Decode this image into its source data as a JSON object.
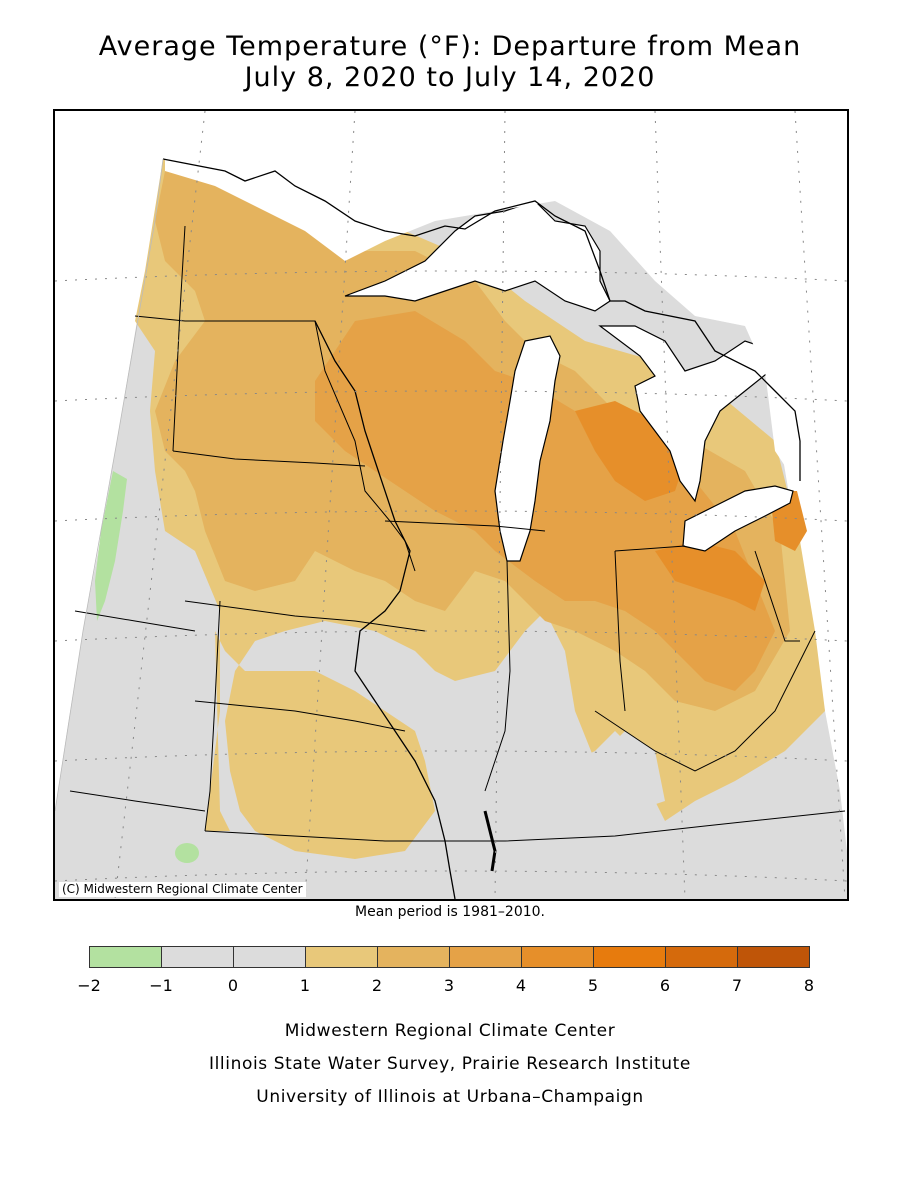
{
  "title": {
    "line1": "Average Temperature (°F): Departure from Mean",
    "line2": "July 8, 2020 to July 14, 2020"
  },
  "map": {
    "copyright": "(C) Midwestern Regional Climate Center",
    "region": "Upper Midwest / Great Lakes"
  },
  "mean_period": "Mean period is 1981–2010.",
  "legend": {
    "bins": [
      {
        "from": -2,
        "to": -1,
        "color": "#b3e1a0"
      },
      {
        "from": -1,
        "to": 0,
        "color": "#dcdcdc"
      },
      {
        "from": 0,
        "to": 1,
        "color": "#dcdcdc"
      },
      {
        "from": 1,
        "to": 2,
        "color": "#e8c87a"
      },
      {
        "from": 2,
        "to": 3,
        "color": "#e4b35e"
      },
      {
        "from": 3,
        "to": 4,
        "color": "#e5a247"
      },
      {
        "from": 4,
        "to": 5,
        "color": "#e68f2a"
      },
      {
        "from": 5,
        "to": 6,
        "color": "#e77b0d"
      },
      {
        "from": 6,
        "to": 7,
        "color": "#d56a0c"
      },
      {
        "from": 7,
        "to": 8,
        "color": "#bf5508"
      }
    ],
    "ticks": [
      "−2",
      "−1",
      "0",
      "1",
      "2",
      "3",
      "4",
      "5",
      "6",
      "7",
      "8"
    ]
  },
  "credits": {
    "line1": "Midwestern Regional Climate Center",
    "line2": "Illinois State Water Survey, Prairie Research Institute",
    "line3": "University of Illinois at Urbana–Champaign"
  },
  "colors": {
    "anomaly_neg": "#b3e1a0",
    "anomaly_zero": "#dcdcdc",
    "anomaly_1_2": "#e8c87a",
    "anomaly_2_3": "#e4b35e",
    "anomaly_3_4": "#e5a247",
    "anomaly_4_5": "#e68f2a",
    "water": "#ffffff",
    "border": "#000000"
  }
}
